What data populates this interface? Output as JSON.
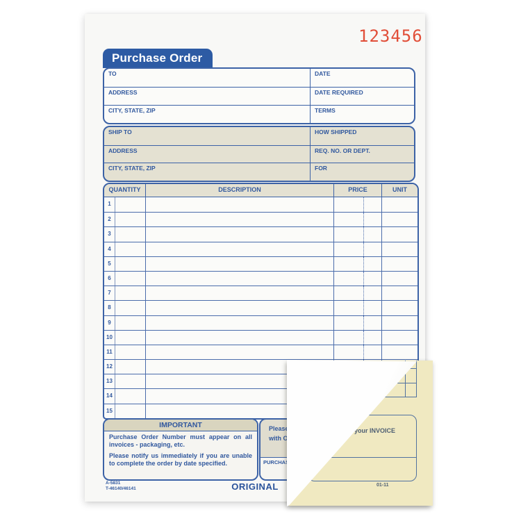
{
  "order_number": "123456",
  "title": "Purchase Order",
  "bill_to": {
    "rows": [
      {
        "left": "TO",
        "right": "DATE"
      },
      {
        "left": "ADDRESS",
        "right": "DATE REQUIRED"
      },
      {
        "left": "CITY, STATE, ZIP",
        "right": "TERMS"
      }
    ]
  },
  "ship_to": {
    "rows": [
      {
        "left": "SHIP TO",
        "right": "HOW SHIPPED"
      },
      {
        "left": "ADDRESS",
        "right": "REQ. NO. OR DEPT."
      },
      {
        "left": "CITY, STATE, ZIP",
        "right": "FOR"
      }
    ]
  },
  "table": {
    "headers": [
      "QUANTITY",
      "DESCRIPTION",
      "PRICE",
      "UNIT"
    ],
    "row_numbers": [
      "1",
      "2",
      "3",
      "4",
      "5",
      "6",
      "7",
      "8",
      "9",
      "10",
      "11",
      "12",
      "13",
      "14",
      "15"
    ]
  },
  "important": {
    "header": "IMPORTANT",
    "para1": "Purchase Order Number must appear on all invoices - packaging, etc.",
    "para2": "Please notify us immediately if you are unable to complete the order by date specified."
  },
  "invoice_note": {
    "line1": "Please s",
    "line2": "with OR",
    "purchasing_label": "PURCHASING"
  },
  "footer": {
    "form_code1": "A-5831",
    "form_code2": "T-46140/46141",
    "original_label": "ORIGINAL"
  },
  "duplicate_sheet": {
    "invoice_text": "your INVOICE",
    "date_code": "01-11"
  },
  "colors": {
    "form_blue": "#31589e",
    "tab_blue": "#2d5ba4",
    "tan": "#e4e1d2",
    "stamp_red": "#e14e38",
    "canary": "#f0e9c1"
  }
}
